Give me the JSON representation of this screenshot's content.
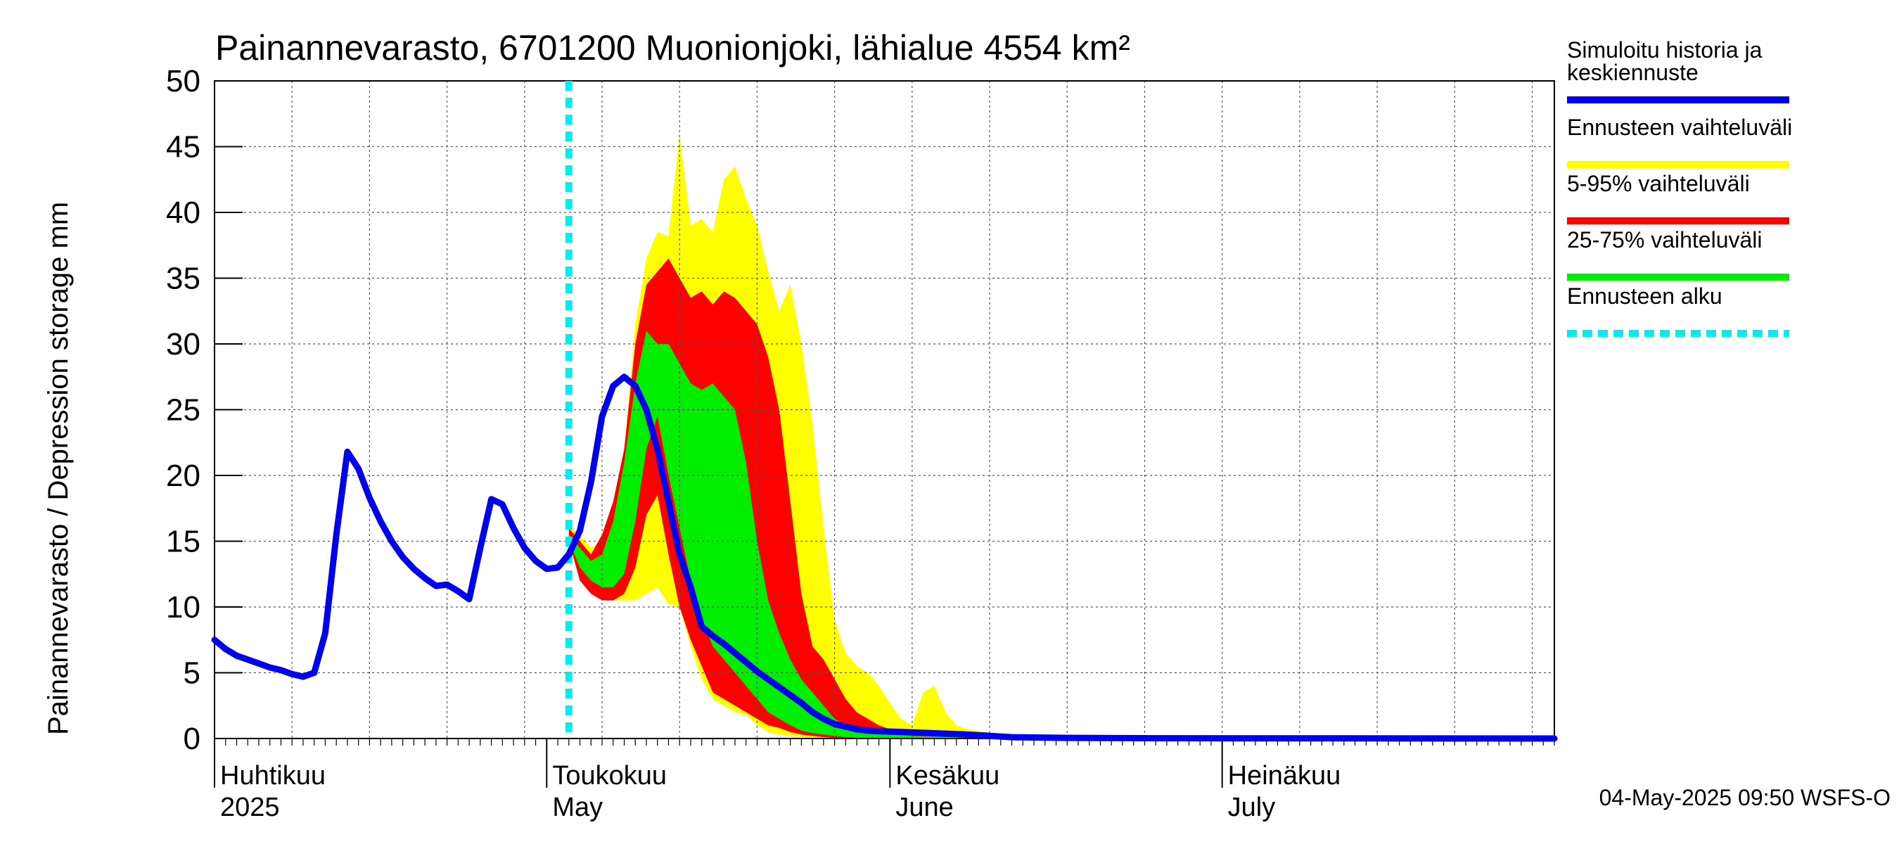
{
  "chart_data": {
    "type": "area",
    "title": "Painannevarasto, 6701200 Muonionjoki, lähialue 4554 km²",
    "ylabel": "Painannevarasto / Depression storage    mm",
    "ylim": [
      0,
      50
    ],
    "yticks": [
      "0",
      "5",
      "10",
      "15",
      "20",
      "25",
      "30",
      "35",
      "40",
      "45",
      "50"
    ],
    "xlim": [
      "2025-04-01",
      "2025-07-31"
    ],
    "grid": true,
    "legend_position": "right",
    "month_labels": [
      {
        "date": "2025-04-01",
        "line1": "Huhtikuu",
        "line2": "2025"
      },
      {
        "date": "2025-05-01",
        "line1": "Toukokuu",
        "line2": "May"
      },
      {
        "date": "2025-06-01",
        "line1": "Kesäkuu",
        "line2": "June"
      },
      {
        "date": "2025-07-01",
        "line1": "Heinäkuu",
        "line2": "July"
      }
    ],
    "forecast_start": "2025-05-03",
    "legend": [
      {
        "line1": "Simuloitu historia ja",
        "line2": "keskiennuste",
        "color": "#0000ee",
        "style": "solid"
      },
      {
        "line1": "Ennusteen vaihteluväli",
        "line2": "",
        "color": "#ffff00",
        "style": "solid"
      },
      {
        "line1": "5-95% vaihteluväli",
        "line2": "",
        "color": "#ff0000",
        "style": "solid"
      },
      {
        "line1": "25-75% vaihteluväli",
        "line2": "",
        "color": "#00ee00",
        "style": "solid"
      },
      {
        "line1": "Ennusteen alku",
        "line2": "",
        "color": "#00eeee",
        "style": "dashed"
      }
    ],
    "series": [
      {
        "band": "min-max",
        "color": "#ffff00",
        "x": [
          "2025-05-03",
          "2025-05-04",
          "2025-05-05",
          "2025-05-06",
          "2025-05-07",
          "2025-05-08",
          "2025-05-09",
          "2025-05-10",
          "2025-05-11",
          "2025-05-12",
          "2025-05-13",
          "2025-05-14",
          "2025-05-15",
          "2025-05-16",
          "2025-05-17",
          "2025-05-18",
          "2025-05-19",
          "2025-05-20",
          "2025-05-21",
          "2025-05-22",
          "2025-05-23",
          "2025-05-24",
          "2025-05-25",
          "2025-05-26",
          "2025-05-27",
          "2025-05-28",
          "2025-05-29",
          "2025-05-30",
          "2025-05-31",
          "2025-06-01",
          "2025-06-02",
          "2025-06-03",
          "2025-06-04",
          "2025-06-05",
          "2025-06-06",
          "2025-06-07",
          "2025-06-08",
          "2025-06-09",
          "2025-06-10",
          "2025-06-11",
          "2025-06-12",
          "2025-06-13",
          "2025-06-15",
          "2025-06-17",
          "2025-06-20",
          "2025-06-25",
          "2025-07-31"
        ],
        "upper": [
          16.2,
          15.5,
          14.5,
          15.0,
          17.0,
          22.0,
          31.5,
          36.5,
          38.5,
          38.2,
          46.0,
          39.0,
          39.5,
          38.5,
          42.5,
          43.5,
          41.0,
          39.0,
          35.5,
          32.5,
          34.5,
          30.0,
          24.0,
          16.0,
          9.0,
          6.5,
          5.5,
          5.0,
          4.0,
          2.7,
          1.5,
          1.0,
          3.5,
          4.0,
          2.0,
          1.0,
          0.7,
          0.6,
          0.4,
          0.3,
          0.2,
          0.1,
          0.05,
          0.02,
          0.01,
          0.0,
          0.0
        ],
        "lower": [
          15.0,
          12.5,
          11.5,
          11.0,
          10.5,
          10.5,
          10.5,
          11.0,
          11.5,
          10.2,
          10.0,
          7.0,
          4.5,
          3.0,
          2.5,
          2.0,
          1.8,
          1.0,
          0.5,
          0.3,
          0.2,
          0.1,
          0.05,
          0.02,
          0.01,
          0.0,
          0.0,
          0.0,
          0.0,
          0.0,
          0.0,
          0.0,
          0.0,
          0.0,
          0.0,
          0.0,
          0.0,
          0.0,
          0.0,
          0.0,
          0.0,
          0.0,
          0.0,
          0.0,
          0.0,
          0.0,
          0.0
        ]
      },
      {
        "band": "5-95%",
        "color": "#ff0000",
        "x": [
          "2025-05-03",
          "2025-05-04",
          "2025-05-05",
          "2025-05-06",
          "2025-05-07",
          "2025-05-08",
          "2025-05-09",
          "2025-05-10",
          "2025-05-11",
          "2025-05-12",
          "2025-05-13",
          "2025-05-14",
          "2025-05-15",
          "2025-05-16",
          "2025-05-17",
          "2025-05-18",
          "2025-05-19",
          "2025-05-20",
          "2025-05-21",
          "2025-05-22",
          "2025-05-23",
          "2025-05-24",
          "2025-05-25",
          "2025-05-26",
          "2025-05-27",
          "2025-05-28",
          "2025-05-29",
          "2025-05-30",
          "2025-05-31",
          "2025-06-01",
          "2025-06-02",
          "2025-06-03",
          "2025-06-04",
          "2025-06-05",
          "2025-06-06",
          "2025-06-07",
          "2025-06-08",
          "2025-06-10",
          "2025-06-13",
          "2025-06-17",
          "2025-06-25",
          "2025-07-31"
        ],
        "upper": [
          16.0,
          15.0,
          14.0,
          15.5,
          18.0,
          22.0,
          30.0,
          34.5,
          35.5,
          36.5,
          35.0,
          33.5,
          34.0,
          33.0,
          34.0,
          33.5,
          32.5,
          31.5,
          29.0,
          25.0,
          18.0,
          11.0,
          7.0,
          6.0,
          4.5,
          3.0,
          2.0,
          1.5,
          1.0,
          0.7,
          0.5,
          0.4,
          0.4,
          0.3,
          0.3,
          0.2,
          0.15,
          0.08,
          0.03,
          0.01,
          0.0,
          0.0
        ],
        "lower": [
          15.0,
          12.0,
          11.0,
          10.5,
          10.5,
          11.0,
          13.0,
          17.0,
          18.5,
          14.0,
          10.0,
          7.5,
          5.5,
          3.5,
          3.0,
          2.5,
          2.0,
          1.5,
          1.0,
          0.8,
          0.5,
          0.3,
          0.2,
          0.1,
          0.05,
          0.02,
          0.0,
          0.0,
          0.0,
          0.0,
          0.0,
          0.0,
          0.0,
          0.0,
          0.0,
          0.0,
          0.0,
          0.0,
          0.0,
          0.0,
          0.0,
          0.0
        ]
      },
      {
        "band": "25-75%",
        "color": "#00ee00",
        "x": [
          "2025-05-03",
          "2025-05-04",
          "2025-05-05",
          "2025-05-06",
          "2025-05-07",
          "2025-05-08",
          "2025-05-09",
          "2025-05-10",
          "2025-05-11",
          "2025-05-12",
          "2025-05-13",
          "2025-05-14",
          "2025-05-15",
          "2025-05-16",
          "2025-05-17",
          "2025-05-18",
          "2025-05-19",
          "2025-05-20",
          "2025-05-21",
          "2025-05-22",
          "2025-05-23",
          "2025-05-24",
          "2025-05-25",
          "2025-05-26",
          "2025-05-27",
          "2025-05-28",
          "2025-05-29",
          "2025-05-30",
          "2025-05-31",
          "2025-06-01",
          "2025-06-02",
          "2025-06-03",
          "2025-06-05",
          "2025-06-08",
          "2025-06-12",
          "2025-06-17",
          "2025-06-25",
          "2025-07-31"
        ],
        "upper": [
          15.5,
          14.5,
          13.5,
          14.0,
          16.5,
          21.0,
          27.0,
          31.0,
          30.0,
          30.0,
          28.5,
          27.0,
          26.5,
          27.0,
          26.0,
          25.0,
          21.0,
          15.0,
          10.5,
          8.0,
          6.0,
          4.5,
          3.5,
          2.5,
          1.5,
          1.0,
          0.7,
          0.5,
          0.4,
          0.3,
          0.3,
          0.2,
          0.15,
          0.08,
          0.03,
          0.01,
          0.0,
          0.0
        ],
        "lower": [
          15.0,
          13.0,
          12.0,
          11.5,
          11.5,
          12.5,
          16.5,
          22.0,
          24.5,
          20.0,
          16.0,
          12.0,
          9.0,
          7.0,
          6.0,
          5.0,
          4.0,
          3.0,
          2.0,
          1.5,
          1.0,
          0.6,
          0.4,
          0.3,
          0.2,
          0.1,
          0.05,
          0.02,
          0.0,
          0.0,
          0.0,
          0.0,
          0.0,
          0.0,
          0.0,
          0.0,
          0.0,
          0.0
        ]
      },
      {
        "name": "Simuloitu historia ja keskiennuste",
        "color": "#0000ee",
        "style": "line",
        "x": [
          "2025-04-01",
          "2025-04-02",
          "2025-04-03",
          "2025-04-04",
          "2025-04-05",
          "2025-04-06",
          "2025-04-07",
          "2025-04-08",
          "2025-04-09",
          "2025-04-10",
          "2025-04-11",
          "2025-04-12",
          "2025-04-13",
          "2025-04-14",
          "2025-04-15",
          "2025-04-16",
          "2025-04-17",
          "2025-04-18",
          "2025-04-19",
          "2025-04-20",
          "2025-04-21",
          "2025-04-22",
          "2025-04-23",
          "2025-04-24",
          "2025-04-25",
          "2025-04-26",
          "2025-04-27",
          "2025-04-28",
          "2025-04-29",
          "2025-04-30",
          "2025-05-01",
          "2025-05-02",
          "2025-05-03",
          "2025-05-04",
          "2025-05-05",
          "2025-05-06",
          "2025-05-07",
          "2025-05-08",
          "2025-05-09",
          "2025-05-10",
          "2025-05-11",
          "2025-05-12",
          "2025-05-13",
          "2025-05-14",
          "2025-05-15",
          "2025-05-16",
          "2025-05-17",
          "2025-05-18",
          "2025-05-19",
          "2025-05-20",
          "2025-05-21",
          "2025-05-22",
          "2025-05-23",
          "2025-05-24",
          "2025-05-25",
          "2025-05-26",
          "2025-05-27",
          "2025-05-28",
          "2025-05-29",
          "2025-05-30",
          "2025-05-31",
          "2025-06-02",
          "2025-06-05",
          "2025-06-08",
          "2025-06-12",
          "2025-06-17",
          "2025-06-25",
          "2025-07-31"
        ],
        "y": [
          7.5,
          6.8,
          6.3,
          6.0,
          5.7,
          5.4,
          5.2,
          4.9,
          4.7,
          5.0,
          8.0,
          15.5,
          21.8,
          20.5,
          18.3,
          16.5,
          15.0,
          13.8,
          12.9,
          12.2,
          11.6,
          11.7,
          11.2,
          10.6,
          14.5,
          18.2,
          17.8,
          16.0,
          14.5,
          13.5,
          12.9,
          13.0,
          14.0,
          15.8,
          19.5,
          24.5,
          26.8,
          27.5,
          26.8,
          25.0,
          22.0,
          18.0,
          14.0,
          11.5,
          8.5,
          7.8,
          7.2,
          6.5,
          5.8,
          5.1,
          4.5,
          3.9,
          3.3,
          2.7,
          2.0,
          1.5,
          1.1,
          0.9,
          0.7,
          0.6,
          0.55,
          0.5,
          0.4,
          0.3,
          0.1,
          0.05,
          0.02,
          0.0
        ]
      }
    ]
  },
  "footer": "04-May-2025 09:50 WSFS-O"
}
